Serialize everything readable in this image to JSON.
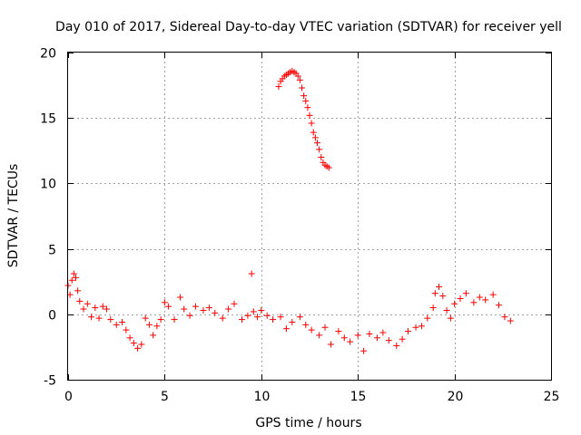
{
  "chart_data": {
    "type": "scatter",
    "title": "Day 010 of 2017, Sidereal Day-to-day VTEC variation (SDTVAR) for receiver yell",
    "xlabel": "GPS time / hours",
    "ylabel": "SDTVAR / TECUs",
    "xlim": [
      0,
      25
    ],
    "ylim": [
      -5,
      20
    ],
    "xticks": [
      0,
      5,
      10,
      15,
      20,
      25
    ],
    "yticks": [
      -5,
      0,
      5,
      10,
      15,
      20
    ],
    "grid": true,
    "marker": "+",
    "series_color": "#ff0000",
    "series": [
      {
        "name": "SDTVAR",
        "x": [
          0.0,
          0.1,
          0.2,
          0.3,
          0.4,
          0.5,
          0.6,
          0.8,
          1.0,
          1.2,
          1.4,
          1.6,
          1.8,
          2.0,
          2.2,
          2.5,
          2.8,
          3.0,
          3.2,
          3.4,
          3.6,
          3.8,
          4.0,
          4.2,
          4.4,
          4.6,
          4.8,
          5.0,
          5.2,
          5.5,
          5.8,
          6.0,
          6.3,
          6.6,
          7.0,
          7.3,
          7.6,
          8.0,
          8.3,
          8.6,
          9.0,
          9.3,
          9.5,
          9.6,
          9.8,
          10.0,
          10.3,
          10.6,
          11.0,
          11.3,
          11.6,
          12.0,
          12.3,
          12.6,
          13.0,
          13.3,
          13.6,
          14.0,
          14.3,
          14.6,
          15.0,
          15.3,
          15.6,
          16.0,
          16.3,
          16.6,
          17.0,
          17.3,
          17.6,
          18.0,
          18.3,
          18.6,
          18.9,
          19.0,
          19.2,
          19.4,
          19.6,
          19.8,
          20.0,
          20.3,
          20.6,
          21.0,
          21.3,
          21.6,
          22.0,
          22.3,
          22.6,
          22.9,
          10.9,
          11.0,
          11.1,
          11.2,
          11.3,
          11.4,
          11.5,
          11.6,
          11.7,
          11.8,
          11.9,
          12.0,
          12.1,
          12.2,
          12.3,
          12.4,
          12.5,
          12.6,
          12.7,
          12.8,
          12.9,
          13.0,
          13.1,
          13.2,
          13.3,
          13.4,
          13.5
        ],
        "y": [
          2.2,
          1.5,
          2.6,
          3.1,
          2.8,
          1.8,
          1.0,
          0.4,
          0.8,
          -0.2,
          0.5,
          -0.3,
          0.6,
          0.4,
          -0.4,
          -0.8,
          -0.6,
          -1.2,
          -1.8,
          -2.2,
          -2.6,
          -2.3,
          -0.3,
          -0.8,
          -1.6,
          -0.9,
          -0.4,
          0.9,
          0.6,
          -0.4,
          1.3,
          0.4,
          -0.1,
          0.6,
          0.3,
          0.5,
          0.1,
          -0.3,
          0.4,
          0.8,
          -0.4,
          -0.1,
          3.1,
          0.2,
          -0.2,
          0.3,
          -0.1,
          -0.4,
          -0.2,
          -1.1,
          -0.6,
          -0.2,
          -0.8,
          -1.2,
          -1.6,
          -1.0,
          -2.3,
          -1.3,
          -1.8,
          -2.1,
          -1.6,
          -2.8,
          -1.5,
          -1.8,
          -1.4,
          -2.0,
          -2.4,
          -1.9,
          -1.3,
          -1.0,
          -0.9,
          -0.3,
          0.5,
          1.6,
          2.1,
          1.4,
          0.3,
          -0.3,
          0.8,
          1.2,
          1.6,
          0.9,
          1.3,
          1.1,
          1.5,
          0.7,
          -0.2,
          -0.5,
          17.4,
          17.8,
          18.0,
          18.2,
          18.3,
          18.4,
          18.5,
          18.6,
          18.5,
          18.4,
          18.2,
          17.9,
          17.3,
          16.7,
          16.3,
          15.8,
          15.2,
          14.6,
          13.9,
          13.5,
          13.1,
          12.6,
          12.0,
          11.6,
          11.4,
          11.3,
          11.2
        ]
      }
    ]
  }
}
